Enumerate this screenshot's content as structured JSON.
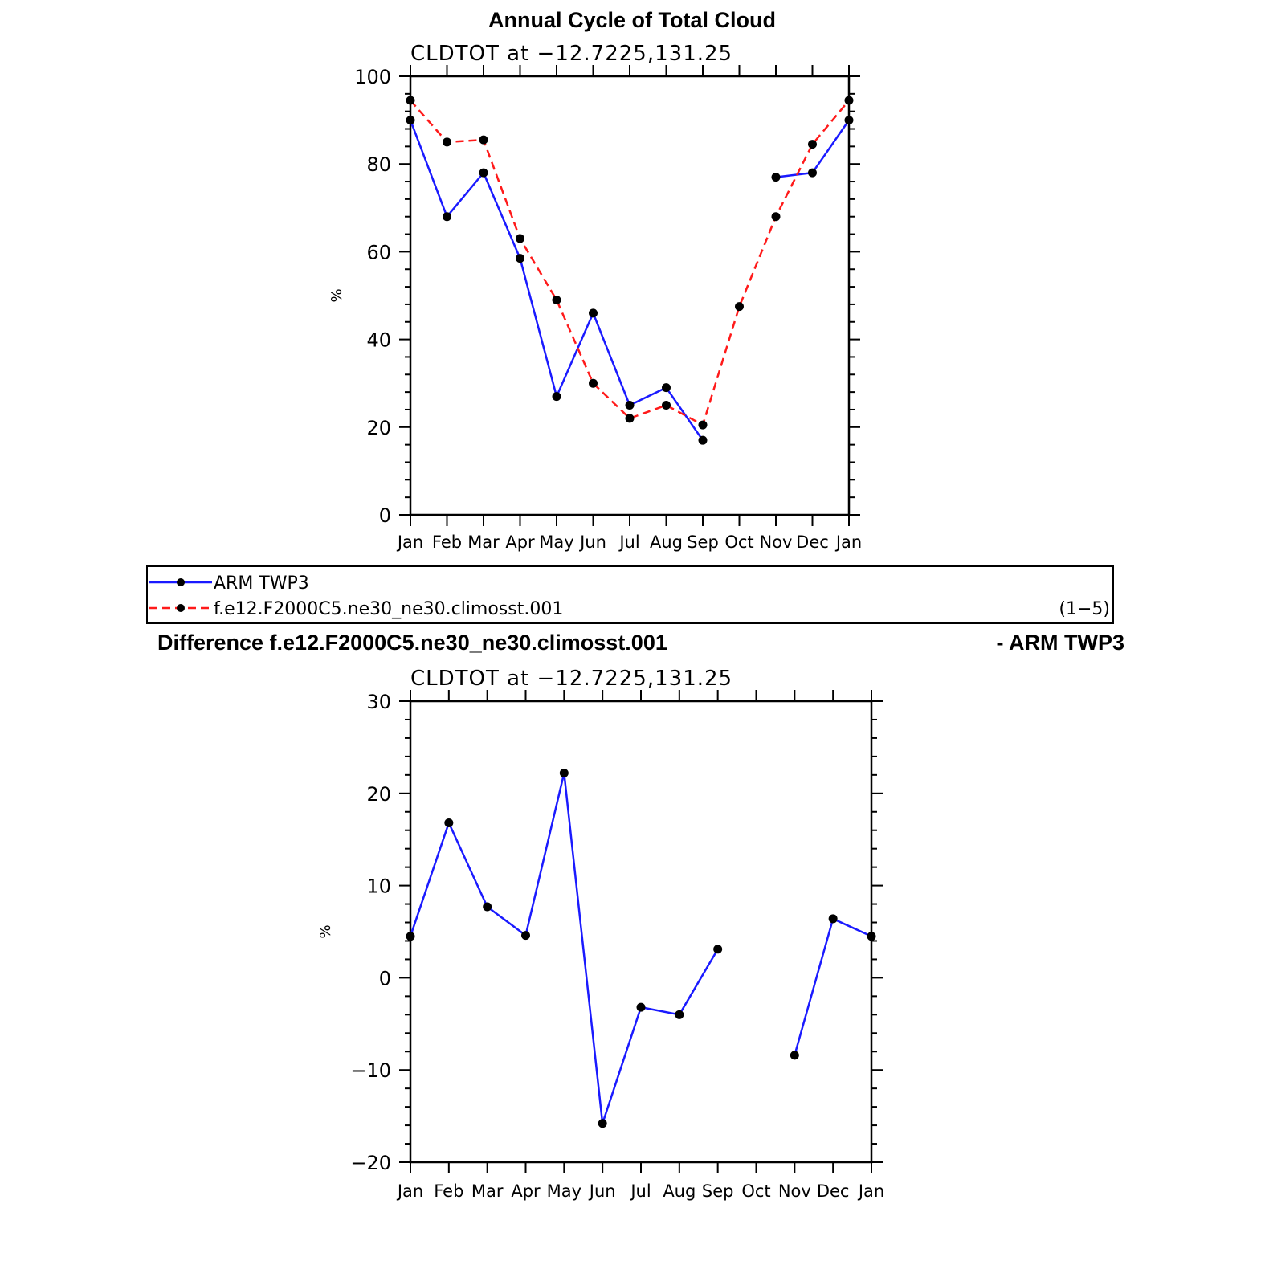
{
  "figure": {
    "title": "Annual Cycle of Total Cloud",
    "diff_title_left": "Difference f.e12.F2000C5.ne30_ne30.climosst.001",
    "diff_title_right": "- ARM TWP3"
  },
  "legend": {
    "entries": [
      {
        "name": "ARM TWP3",
        "color": "#1a1aff",
        "style": "solid"
      },
      {
        "name": "f.e12.F2000C5.ne30_ne30.climosst.001",
        "color": "#ff1a1a",
        "style": "dashed"
      }
    ],
    "note": "(1−5)"
  },
  "chart_data": [
    {
      "type": "line",
      "subtitle": "CLDTOT at −12.7225,131.25",
      "ylabel": "%",
      "ylim": [
        0,
        100
      ],
      "yticks": [
        0,
        20,
        40,
        60,
        80,
        100
      ],
      "ytick_labels": [
        "0",
        "20",
        "40",
        "60",
        "80",
        "100"
      ],
      "categories": [
        "Jan",
        "Feb",
        "Mar",
        "Apr",
        "May",
        "Jun",
        "Jul",
        "Aug",
        "Sep",
        "Oct",
        "Nov",
        "Dec",
        "Jan"
      ],
      "series": [
        {
          "name": "ARM TWP3",
          "color": "#1a1aff",
          "style": "solid",
          "values": [
            90,
            68,
            78,
            58.5,
            27,
            46,
            25,
            29,
            17,
            null,
            77,
            78,
            90
          ]
        },
        {
          "name": "f.e12.F2000C5.ne30_ne30.climosst.001",
          "color": "#ff1a1a",
          "style": "dashed",
          "values": [
            94.5,
            85,
            85.5,
            63,
            49,
            30,
            22,
            25,
            20.5,
            47.5,
            68,
            84.5,
            94.5
          ]
        }
      ]
    },
    {
      "type": "line",
      "subtitle": "CLDTOT at −12.7225,131.25",
      "ylabel": "%",
      "ylim": [
        -20,
        30
      ],
      "yticks": [
        -20,
        -10,
        0,
        10,
        20,
        30
      ],
      "ytick_labels": [
        "−20",
        "−10",
        "0",
        "10",
        "20",
        "30"
      ],
      "categories": [
        "Jan",
        "Feb",
        "Mar",
        "Apr",
        "May",
        "Jun",
        "Jul",
        "Aug",
        "Sep",
        "Oct",
        "Nov",
        "Dec",
        "Jan"
      ],
      "series": [
        {
          "name": "",
          "color": "#1a1aff",
          "style": "solid",
          "values": [
            4.5,
            16.8,
            7.7,
            4.6,
            22.2,
            -15.8,
            -3.2,
            -4,
            3.1,
            null,
            -8.4,
            6.4,
            4.5
          ]
        }
      ]
    }
  ]
}
